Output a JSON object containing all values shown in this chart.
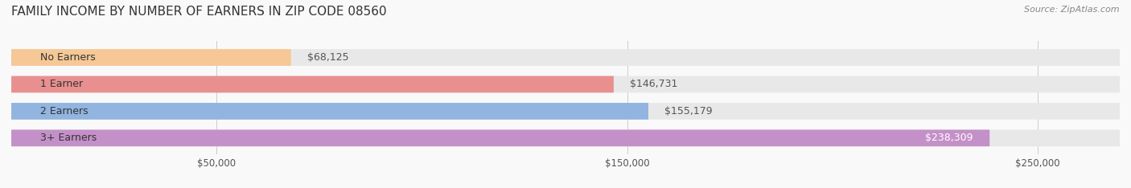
{
  "title": "FAMILY INCOME BY NUMBER OF EARNERS IN ZIP CODE 08560",
  "source": "Source: ZipAtlas.com",
  "categories": [
    "No Earners",
    "1 Earner",
    "2 Earners",
    "3+ Earners"
  ],
  "values": [
    68125,
    146731,
    155179,
    238309
  ],
  "labels": [
    "$68,125",
    "$146,731",
    "$155,179",
    "$238,309"
  ],
  "bar_colors": [
    "#f5c896",
    "#e89090",
    "#92b4e0",
    "#c490c8"
  ],
  "bar_bg_color": "#e8e8e8",
  "label_colors": [
    "#555555",
    "#555555",
    "#555555",
    "#ffffff"
  ],
  "xlim": [
    0,
    270000
  ],
  "xticks": [
    50000,
    150000,
    250000
  ],
  "xticklabels": [
    "$50,000",
    "$150,000",
    "$250,000"
  ],
  "title_fontsize": 11,
  "source_fontsize": 8,
  "label_fontsize": 9,
  "category_fontsize": 9,
  "tick_fontsize": 8.5
}
